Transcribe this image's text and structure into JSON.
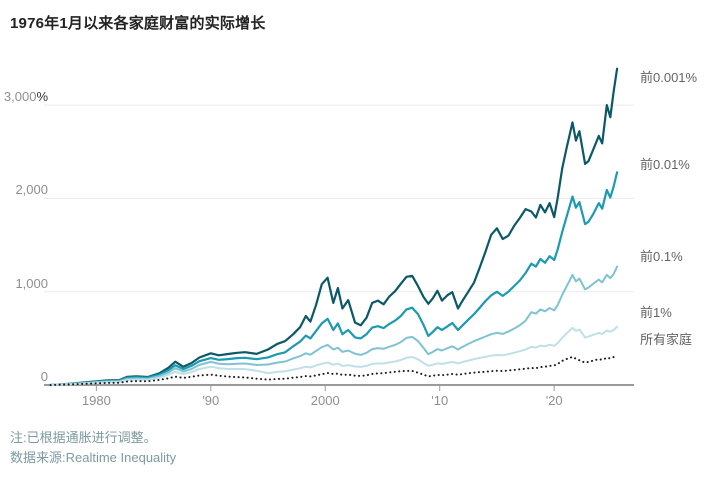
{
  "title": "1976年1月以来各家庭财富的实际增长",
  "notes": {
    "note": "注:已根据通胀进行调整。",
    "source": "数据来源:Realtime Inequality"
  },
  "colors": {
    "top_0_001pct": "#0b5966",
    "top_0_01pct": "#1b9ab2",
    "top_0_1pct": "#7fc3d3",
    "top_1pct": "#bfe0e8",
    "all_households": "#1a1a1a",
    "gridline": "#eaeaea",
    "baseline": "#9a9a9a",
    "note_text": "#7d9aa2"
  },
  "chart_data": {
    "type": "line",
    "title": "1976年1月以来各家庭财富的实际增长",
    "xlabel": "",
    "ylabel": "%",
    "xlim": [
      1975.6,
      2026.8
    ],
    "ylim": [
      0,
      3450
    ],
    "grid": "horizontal",
    "legend_position": "right-of-line-ends",
    "xticks": [
      1980,
      1990,
      2000,
      2010,
      2020
    ],
    "xtick_labels": [
      "1980",
      "'90",
      "2000",
      "'10",
      "'20"
    ],
    "yticks": [
      0,
      1000,
      2000,
      3000
    ],
    "ytick_labels": [
      "0",
      "1,000",
      "2,000",
      "3,000%"
    ],
    "x": [
      1976,
      1977,
      1978,
      1979,
      1980,
      1981,
      1982,
      1982.7,
      1983.5,
      1984.5,
      1985.5,
      1986.3,
      1986.9,
      1987.6,
      1988.3,
      1989,
      1990,
      1990.7,
      1991.5,
      1992.3,
      1993,
      1994,
      1995,
      1995.8,
      1996.5,
      1997.2,
      1997.8,
      1998.3,
      1998.7,
      1999.2,
      1999.7,
      2000.2,
      2000.7,
      2001.1,
      2001.5,
      2002,
      2002.6,
      2003.1,
      2003.6,
      2004.1,
      2004.6,
      2005.1,
      2005.6,
      2006.1,
      2006.6,
      2007.1,
      2007.6,
      2008.1,
      2008.6,
      2009,
      2009.4,
      2009.8,
      2010.2,
      2010.7,
      2011.1,
      2011.6,
      2012,
      2012.5,
      2013,
      2013.5,
      2014,
      2014.5,
      2015,
      2015.5,
      2016,
      2016.5,
      2017,
      2017.5,
      2018,
      2018.4,
      2018.8,
      2019.2,
      2019.6,
      2020,
      2020.3,
      2020.7,
      2021.1,
      2021.6,
      2021.9,
      2022.2,
      2022.7,
      2023,
      2023.4,
      2023.9,
      2024.2,
      2024.6,
      2024.9,
      2025.2,
      2025.5
    ],
    "series": [
      {
        "name": "前0.001%",
        "style": "solid",
        "color": "#0b5966",
        "stroke_width": 2.2,
        "values": [
          0,
          8,
          16,
          28,
          40,
          50,
          52,
          88,
          92,
          86,
          125,
          185,
          250,
          195,
          235,
          295,
          340,
          318,
          332,
          345,
          352,
          333,
          380,
          440,
          470,
          545,
          620,
          740,
          680,
          860,
          1080,
          1150,
          880,
          1040,
          820,
          910,
          670,
          640,
          720,
          880,
          905,
          865,
          950,
          1005,
          1085,
          1160,
          1170,
          1060,
          940,
          870,
          930,
          1010,
          905,
          965,
          995,
          820,
          905,
          1000,
          1100,
          1260,
          1430,
          1610,
          1680,
          1565,
          1600,
          1705,
          1790,
          1885,
          1860,
          1795,
          1930,
          1850,
          1950,
          1800,
          2000,
          2320,
          2550,
          2815,
          2620,
          2720,
          2370,
          2400,
          2520,
          2670,
          2590,
          3000,
          2870,
          3150,
          3390
        ]
      },
      {
        "name": "前0.01%",
        "style": "solid",
        "color": "#1b9ab2",
        "stroke_width": 2.2,
        "values": [
          0,
          7,
          14,
          24,
          35,
          43,
          46,
          78,
          82,
          78,
          110,
          160,
          212,
          170,
          205,
          255,
          288,
          270,
          278,
          288,
          292,
          277,
          296,
          330,
          350,
          415,
          465,
          530,
          500,
          580,
          660,
          710,
          590,
          660,
          545,
          590,
          510,
          500,
          545,
          615,
          630,
          610,
          655,
          690,
          740,
          810,
          828,
          760,
          640,
          525,
          570,
          620,
          590,
          630,
          665,
          590,
          640,
          700,
          760,
          830,
          900,
          960,
          1000,
          955,
          1000,
          1060,
          1120,
          1200,
          1300,
          1270,
          1350,
          1310,
          1380,
          1340,
          1450,
          1640,
          1810,
          2020,
          1900,
          1960,
          1725,
          1750,
          1830,
          1950,
          1890,
          2090,
          2010,
          2130,
          2280
        ]
      },
      {
        "name": "前0.1%",
        "style": "solid",
        "color": "#7fc3d3",
        "stroke_width": 2,
        "values": [
          0,
          6,
          12,
          20,
          30,
          36,
          40,
          66,
          70,
          66,
          95,
          135,
          180,
          145,
          172,
          215,
          248,
          228,
          222,
          228,
          230,
          214,
          220,
          240,
          252,
          285,
          310,
          340,
          325,
          365,
          405,
          430,
          380,
          400,
          355,
          370,
          335,
          323,
          345,
          385,
          395,
          388,
          410,
          430,
          460,
          505,
          516,
          470,
          395,
          330,
          355,
          385,
          370,
          395,
          415,
          380,
          408,
          440,
          470,
          495,
          520,
          545,
          560,
          548,
          572,
          605,
          640,
          690,
          780,
          765,
          810,
          790,
          825,
          800,
          855,
          965,
          1060,
          1180,
          1110,
          1140,
          1025,
          1045,
          1085,
          1130,
          1100,
          1180,
          1145,
          1190,
          1270
        ]
      },
      {
        "name": "前1%",
        "style": "solid",
        "color": "#bfe0e8",
        "stroke_width": 2,
        "values": [
          0,
          5,
          10,
          17,
          25,
          30,
          33,
          54,
          58,
          55,
          78,
          110,
          142,
          118,
          138,
          170,
          196,
          180,
          172,
          172,
          170,
          152,
          128,
          140,
          148,
          165,
          180,
          196,
          188,
          210,
          228,
          240,
          218,
          228,
          205,
          212,
          198,
          194,
          205,
          226,
          232,
          230,
          242,
          252,
          268,
          292,
          300,
          275,
          235,
          205,
          218,
          232,
          226,
          238,
          248,
          232,
          246,
          262,
          278,
          290,
          302,
          315,
          322,
          318,
          330,
          346,
          362,
          382,
          408,
          402,
          422,
          415,
          432,
          420,
          448,
          505,
          555,
          612,
          580,
          595,
          508,
          520,
          538,
          558,
          548,
          585,
          570,
          590,
          625
        ]
      },
      {
        "name": "所有家庭",
        "style": "dotted",
        "color": "#1a1a1a",
        "stroke_width": 2,
        "values": [
          0,
          4,
          8,
          13,
          18,
          22,
          24,
          38,
          42,
          40,
          55,
          72,
          90,
          76,
          88,
          102,
          112,
          100,
          90,
          85,
          80,
          68,
          58,
          64,
          68,
          78,
          86,
          95,
          92,
          103,
          116,
          129,
          118,
          122,
          108,
          112,
          100,
          97,
          104,
          118,
          124,
          126,
          135,
          142,
          148,
          152,
          151,
          132,
          110,
          92,
          100,
          108,
          105,
          112,
          118,
          110,
          117,
          126,
          132,
          138,
          142,
          148,
          152,
          150,
          155,
          162,
          168,
          175,
          182,
          180,
          192,
          196,
          205,
          210,
          225,
          258,
          280,
          301,
          282,
          265,
          240,
          248,
          262,
          278,
          270,
          292,
          285,
          300,
          325
        ]
      }
    ]
  }
}
